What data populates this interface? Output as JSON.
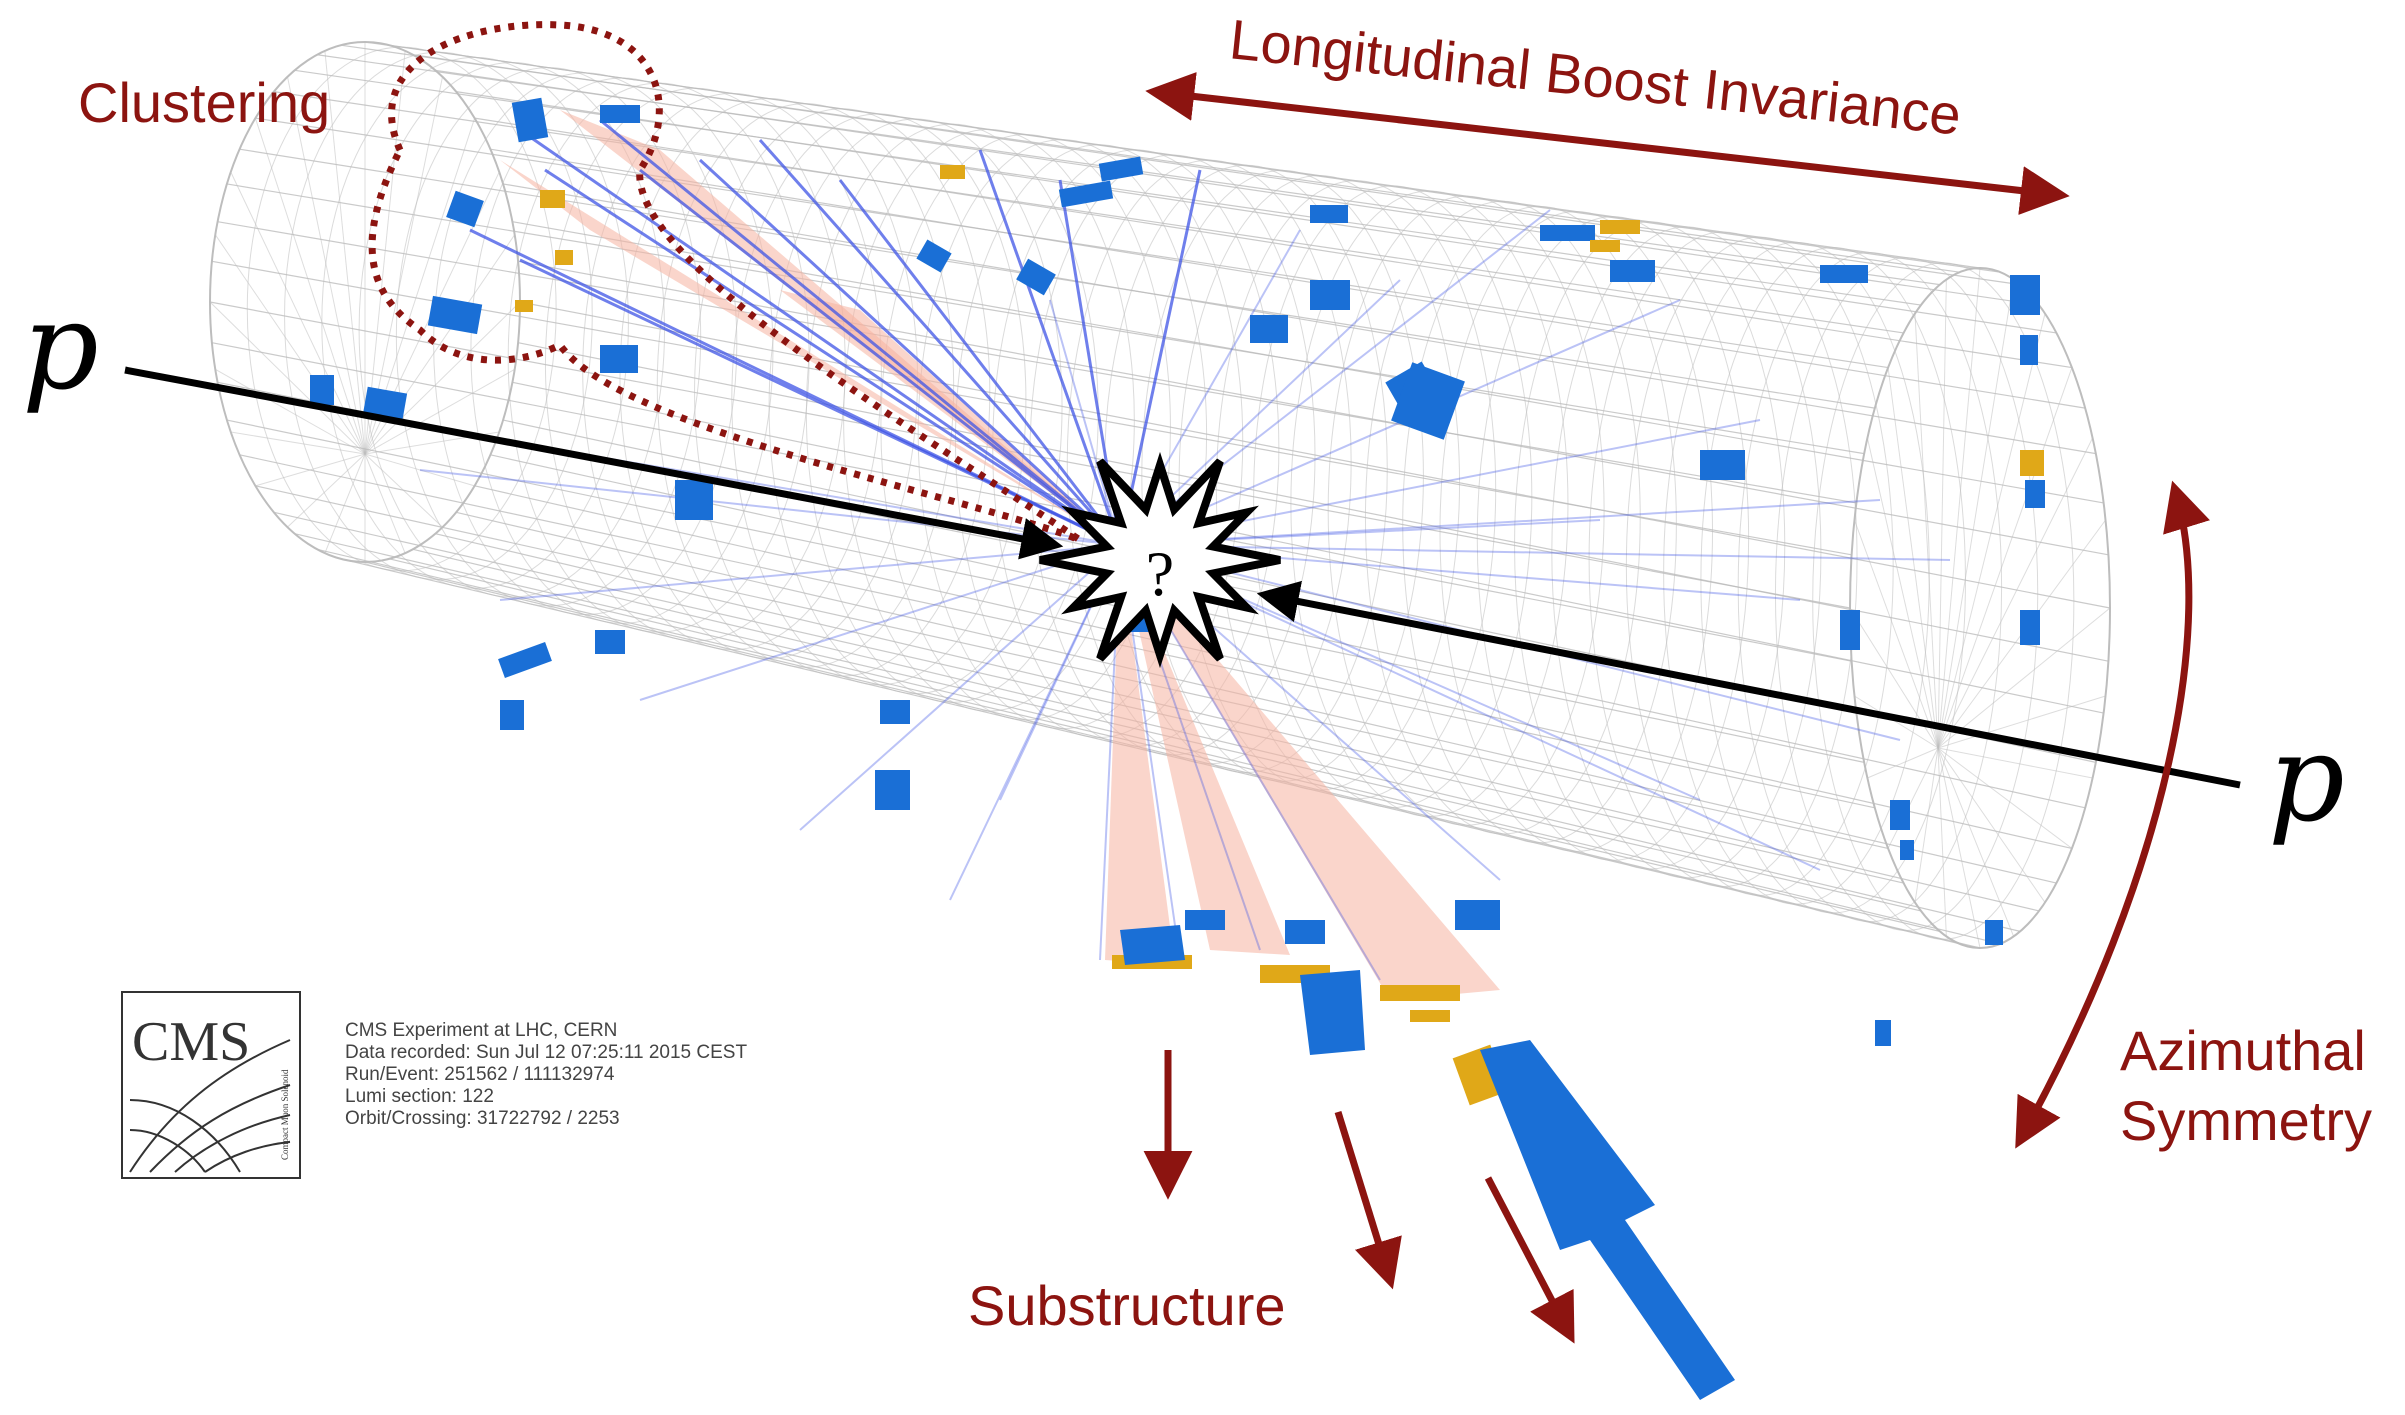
{
  "labels": {
    "clustering": "Clustering",
    "longitudinal": "Longitudinal Boost Invariance",
    "azimuthal_line1": "Azimuthal",
    "azimuthal_line2": "Symmetry",
    "substructure": "Substructure",
    "proton_left": "p",
    "proton_right": "p",
    "collision_mark": "?"
  },
  "cms_logo": {
    "text": "CMS",
    "subtext": "Compact Muon Solenoid"
  },
  "event_info": [
    "CMS Experiment at LHC, CERN",
    "Data recorded: Sun Jul 12 07:25:11 2015 CEST",
    "Run/Event: 251562 / 111132974",
    "Lumi section: 122",
    "Orbit/Crossing: 31722792 / 2253"
  ],
  "colors": {
    "annotation": "#8c1410",
    "hcal": "#1a6fd6",
    "ecal": "#e0a818",
    "track": "#3f55e6",
    "jet_cone": "#f6b2a0",
    "mesh": "#bdbdbd"
  }
}
